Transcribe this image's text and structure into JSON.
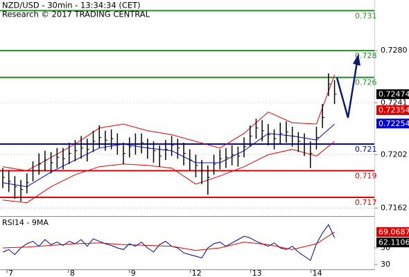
{
  "chart_data": [
    {
      "type": "ohlc",
      "title": "NZD/USD - 30min - 13:34:34 (CET)",
      "subtitle": "Research © 2017 TRADING CENTRAL",
      "color": "#000000",
      "xlim": [
        -0.46,
        61.6
      ],
      "xticks": [
        {
          "value": 0.7,
          "label": "7"
        },
        {
          "value": 10.9,
          "label": "8"
        },
        {
          "value": 21,
          "label": "9"
        },
        {
          "value": 31.1,
          "label": "12"
        },
        {
          "value": 41.1,
          "label": "13"
        },
        {
          "value": 51.1,
          "label": "14"
        }
      ],
      "ylim": [
        0.7156,
        0.7318
      ],
      "yticks": [
        {
          "value": 0.728,
          "label": "0.7280"
        },
        0.7241,
        0.7202,
        0.7162
      ],
      "grid": true,
      "high": [
        0.7192,
        0.719,
        0.7186,
        0.7183,
        0.7188,
        0.7197,
        0.7203,
        0.7205,
        0.7204,
        0.7207,
        0.7207,
        0.7211,
        0.7213,
        0.7216,
        0.7214,
        0.722,
        0.7224,
        0.722,
        0.7221,
        0.7218,
        0.7211,
        0.7215,
        0.7218,
        0.7218,
        0.7214,
        0.7212,
        0.7209,
        0.7213,
        0.7216,
        0.7214,
        0.7211,
        0.7206,
        0.7202,
        0.7198,
        0.7194,
        0.7202,
        0.7206,
        0.7207,
        0.7209,
        0.7208,
        0.7215,
        0.7224,
        0.7229,
        0.7228,
        0.7225,
        0.7221,
        0.7226,
        0.7227,
        0.7223,
        0.7219,
        0.7218,
        0.7212,
        0.7223,
        0.724,
        0.7263,
        0.7258
      ],
      "low": [
        0.7177,
        0.7174,
        0.7169,
        0.7167,
        0.7173,
        0.7182,
        0.7187,
        0.719,
        0.7188,
        0.7192,
        0.7191,
        0.7195,
        0.7197,
        0.7199,
        0.7197,
        0.7204,
        0.7207,
        0.7205,
        0.7206,
        0.7202,
        0.7195,
        0.72,
        0.7202,
        0.7203,
        0.7199,
        0.7196,
        0.7193,
        0.7198,
        0.7201,
        0.7199,
        0.7194,
        0.719,
        0.7185,
        0.718,
        0.7172,
        0.7187,
        0.7191,
        0.7192,
        0.7194,
        0.7193,
        0.72,
        0.7208,
        0.7214,
        0.7212,
        0.7209,
        0.7206,
        0.721,
        0.7211,
        0.7208,
        0.7204,
        0.7201,
        0.7192,
        0.7206,
        0.7222,
        0.7246,
        0.724
      ],
      "close": [
        0.7185,
        0.7182,
        0.7178,
        0.7176,
        0.7181,
        0.719,
        0.7195,
        0.7198,
        0.7196,
        0.72,
        0.7199,
        0.7203,
        0.7205,
        0.7207,
        0.7206,
        0.7212,
        0.7215,
        0.7213,
        0.7214,
        0.721,
        0.7203,
        0.7208,
        0.721,
        0.7211,
        0.7207,
        0.7205,
        0.7201,
        0.7206,
        0.7209,
        0.7207,
        0.7203,
        0.7198,
        0.7194,
        0.719,
        0.7185,
        0.7195,
        0.7199,
        0.72,
        0.7202,
        0.7201,
        0.7208,
        0.7216,
        0.7222,
        0.722,
        0.7217,
        0.7214,
        0.7218,
        0.7219,
        0.7216,
        0.7212,
        0.721,
        0.7203,
        0.7215,
        0.723,
        0.7255,
        0.72474
      ],
      "series": [
        {
          "color": "#dd0000",
          "x": [
            0,
            4,
            8,
            12,
            16,
            20,
            24,
            28,
            32,
            36,
            40,
            44,
            48,
            52,
            55
          ],
          "values": [
            0.7193,
            0.719,
            0.72,
            0.721,
            0.7222,
            0.7225,
            0.722,
            0.7217,
            0.7212,
            0.7207,
            0.7218,
            0.7234,
            0.7226,
            0.7225,
            0.7262
          ]
        },
        {
          "color": "#dd0000",
          "x": [
            0,
            4,
            8,
            12,
            16,
            20,
            24,
            28,
            32,
            36,
            40,
            44,
            48,
            52,
            55
          ],
          "values": [
            0.7168,
            0.7166,
            0.7178,
            0.7187,
            0.7193,
            0.7195,
            0.7194,
            0.7192,
            0.718,
            0.7186,
            0.7193,
            0.7202,
            0.7206,
            0.7201,
            0.7212
          ]
        },
        {
          "color": "#0000cc",
          "x": [
            0,
            4,
            8,
            12,
            16,
            20,
            24,
            28,
            32,
            36,
            40,
            44,
            48,
            52,
            55
          ],
          "values": [
            0.7181,
            0.7178,
            0.7189,
            0.7198,
            0.7207,
            0.721,
            0.7207,
            0.7205,
            0.7196,
            0.7196,
            0.7205,
            0.7218,
            0.7216,
            0.7213,
            0.7225
          ]
        }
      ],
      "levels": [
        {
          "value": 0.731,
          "color": "#1f8f1f"
        },
        {
          "value": 0.728,
          "color": "#1f8f1f"
        },
        {
          "value": 0.726,
          "color": "#1f8f1f"
        },
        {
          "value": 0.721,
          "color": "#0000cc"
        },
        {
          "value": 0.719,
          "color": "#dd0000"
        },
        {
          "value": 0.717,
          "color": "#dd0000"
        }
      ],
      "markers": [
        {
          "value": 0.72474,
          "color": "#000000"
        },
        {
          "value": 0.72354,
          "color": "#dd0000"
        },
        {
          "value": 0.72254,
          "color": "#0000cc"
        }
      ]
    },
    {
      "type": "line",
      "title": "RSI14 - 9MA",
      "xlim": [
        -0.46,
        61.6
      ],
      "ylim": [
        23.3,
        85.8
      ],
      "yticks": [
        50,
        30
      ],
      "series": [
        {
          "color": "#000080",
          "values": [
            45,
            48,
            42,
            50,
            55,
            58,
            52,
            60,
            54,
            57,
            53,
            58,
            55,
            60,
            52,
            61,
            58,
            55,
            53,
            50,
            48,
            55,
            52,
            57,
            50,
            45,
            54,
            58,
            52,
            50,
            44,
            42,
            40,
            38,
            50,
            55,
            57,
            52,
            56,
            60,
            64,
            62,
            58,
            55,
            52,
            56,
            50,
            48,
            52,
            45,
            40,
            35,
            55,
            68,
            78,
            62.1106
          ]
        },
        {
          "color": "#dd0000",
          "x": [
            0,
            4,
            8,
            12,
            16,
            20,
            24,
            28,
            32,
            36,
            40,
            44,
            48,
            52,
            55
          ],
          "values": [
            50,
            51,
            53,
            55,
            56,
            54,
            53,
            52,
            47,
            50,
            57,
            54,
            48,
            55,
            69.0687
          ]
        }
      ],
      "markers": [
        {
          "value": 69.0687,
          "color": "#dd0000"
        },
        {
          "value": 62.1106,
          "color": "#000000"
        }
      ]
    }
  ]
}
